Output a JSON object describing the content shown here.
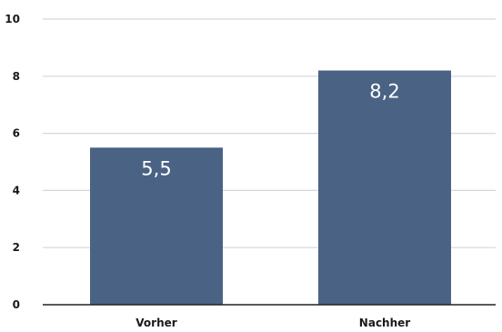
{
  "chart_data": {
    "type": "bar",
    "categories": [
      "Vorher",
      "Nachher"
    ],
    "values": [
      5.5,
      8.2
    ],
    "value_labels": [
      "5,5",
      "8,2"
    ],
    "title": "",
    "xlabel": "",
    "ylabel": "",
    "ylim": [
      0,
      10
    ],
    "yticks": [
      0,
      2,
      4,
      6,
      8,
      10
    ],
    "ytick_labels": [
      "0",
      "2",
      "4",
      "6",
      "8",
      "10"
    ],
    "grid": true,
    "legend": "none",
    "bar_color": "#4a6284",
    "gridline_color": "#d4d8de",
    "axis_color": "#222222"
  }
}
